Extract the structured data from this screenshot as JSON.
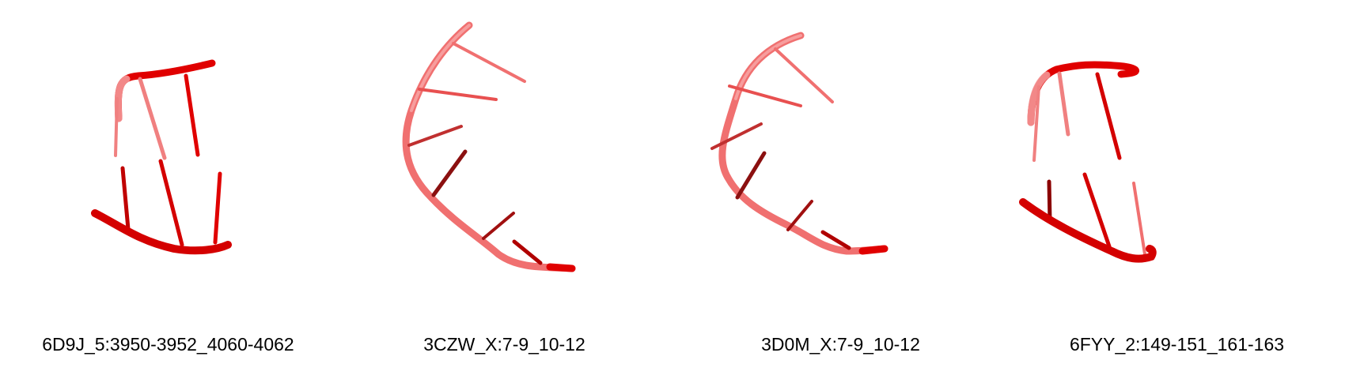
{
  "panels": [
    {
      "label": "6D9J_5:3950-3952_4060-4062",
      "style": "dark-red"
    },
    {
      "label": "3CZW_X:7-9_10-12",
      "style": "salmon"
    },
    {
      "label": "3D0M_X:7-9_10-12",
      "style": "salmon"
    },
    {
      "label": "6FYY_2:149-151_161-163",
      "style": "dark-red"
    }
  ],
  "colors": {
    "backbone_dark": "#d40000",
    "backbone_light": "#f07070",
    "base_dark": "#8b0000",
    "base_mid": "#e00000",
    "base_light": "#f08080"
  }
}
